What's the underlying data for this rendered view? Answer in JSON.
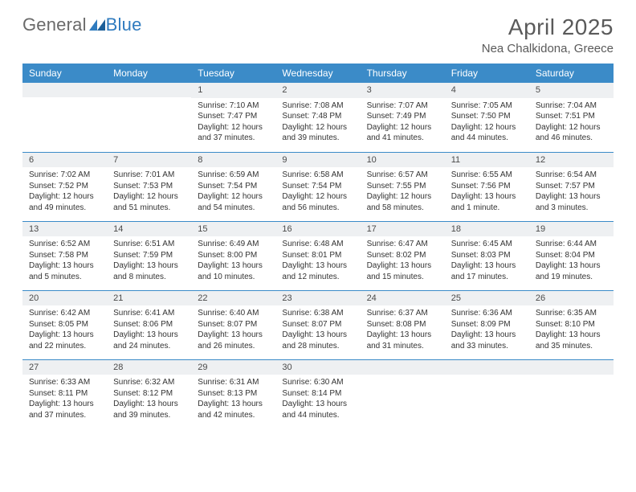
{
  "brand": {
    "part1": "General",
    "part2": "Blue"
  },
  "title": "April 2025",
  "location": "Nea Chalkidona, Greece",
  "header_bg": "#3b8bc8",
  "row_border": "#3b8bc8",
  "daynum_bg": "#eef0f2",
  "weekdays": [
    "Sunday",
    "Monday",
    "Tuesday",
    "Wednesday",
    "Thursday",
    "Friday",
    "Saturday"
  ],
  "weeks": [
    [
      null,
      null,
      {
        "n": "1",
        "sr": "7:10 AM",
        "ss": "7:47 PM",
        "dl": "12 hours and 37 minutes."
      },
      {
        "n": "2",
        "sr": "7:08 AM",
        "ss": "7:48 PM",
        "dl": "12 hours and 39 minutes."
      },
      {
        "n": "3",
        "sr": "7:07 AM",
        "ss": "7:49 PM",
        "dl": "12 hours and 41 minutes."
      },
      {
        "n": "4",
        "sr": "7:05 AM",
        "ss": "7:50 PM",
        "dl": "12 hours and 44 minutes."
      },
      {
        "n": "5",
        "sr": "7:04 AM",
        "ss": "7:51 PM",
        "dl": "12 hours and 46 minutes."
      }
    ],
    [
      {
        "n": "6",
        "sr": "7:02 AM",
        "ss": "7:52 PM",
        "dl": "12 hours and 49 minutes."
      },
      {
        "n": "7",
        "sr": "7:01 AM",
        "ss": "7:53 PM",
        "dl": "12 hours and 51 minutes."
      },
      {
        "n": "8",
        "sr": "6:59 AM",
        "ss": "7:54 PM",
        "dl": "12 hours and 54 minutes."
      },
      {
        "n": "9",
        "sr": "6:58 AM",
        "ss": "7:54 PM",
        "dl": "12 hours and 56 minutes."
      },
      {
        "n": "10",
        "sr": "6:57 AM",
        "ss": "7:55 PM",
        "dl": "12 hours and 58 minutes."
      },
      {
        "n": "11",
        "sr": "6:55 AM",
        "ss": "7:56 PM",
        "dl": "13 hours and 1 minute."
      },
      {
        "n": "12",
        "sr": "6:54 AM",
        "ss": "7:57 PM",
        "dl": "13 hours and 3 minutes."
      }
    ],
    [
      {
        "n": "13",
        "sr": "6:52 AM",
        "ss": "7:58 PM",
        "dl": "13 hours and 5 minutes."
      },
      {
        "n": "14",
        "sr": "6:51 AM",
        "ss": "7:59 PM",
        "dl": "13 hours and 8 minutes."
      },
      {
        "n": "15",
        "sr": "6:49 AM",
        "ss": "8:00 PM",
        "dl": "13 hours and 10 minutes."
      },
      {
        "n": "16",
        "sr": "6:48 AM",
        "ss": "8:01 PM",
        "dl": "13 hours and 12 minutes."
      },
      {
        "n": "17",
        "sr": "6:47 AM",
        "ss": "8:02 PM",
        "dl": "13 hours and 15 minutes."
      },
      {
        "n": "18",
        "sr": "6:45 AM",
        "ss": "8:03 PM",
        "dl": "13 hours and 17 minutes."
      },
      {
        "n": "19",
        "sr": "6:44 AM",
        "ss": "8:04 PM",
        "dl": "13 hours and 19 minutes."
      }
    ],
    [
      {
        "n": "20",
        "sr": "6:42 AM",
        "ss": "8:05 PM",
        "dl": "13 hours and 22 minutes."
      },
      {
        "n": "21",
        "sr": "6:41 AM",
        "ss": "8:06 PM",
        "dl": "13 hours and 24 minutes."
      },
      {
        "n": "22",
        "sr": "6:40 AM",
        "ss": "8:07 PM",
        "dl": "13 hours and 26 minutes."
      },
      {
        "n": "23",
        "sr": "6:38 AM",
        "ss": "8:07 PM",
        "dl": "13 hours and 28 minutes."
      },
      {
        "n": "24",
        "sr": "6:37 AM",
        "ss": "8:08 PM",
        "dl": "13 hours and 31 minutes."
      },
      {
        "n": "25",
        "sr": "6:36 AM",
        "ss": "8:09 PM",
        "dl": "13 hours and 33 minutes."
      },
      {
        "n": "26",
        "sr": "6:35 AM",
        "ss": "8:10 PM",
        "dl": "13 hours and 35 minutes."
      }
    ],
    [
      {
        "n": "27",
        "sr": "6:33 AM",
        "ss": "8:11 PM",
        "dl": "13 hours and 37 minutes."
      },
      {
        "n": "28",
        "sr": "6:32 AM",
        "ss": "8:12 PM",
        "dl": "13 hours and 39 minutes."
      },
      {
        "n": "29",
        "sr": "6:31 AM",
        "ss": "8:13 PM",
        "dl": "13 hours and 42 minutes."
      },
      {
        "n": "30",
        "sr": "6:30 AM",
        "ss": "8:14 PM",
        "dl": "13 hours and 44 minutes."
      },
      null,
      null,
      null
    ]
  ],
  "labels": {
    "sunrise": "Sunrise: ",
    "sunset": "Sunset: ",
    "daylight": "Daylight: "
  }
}
